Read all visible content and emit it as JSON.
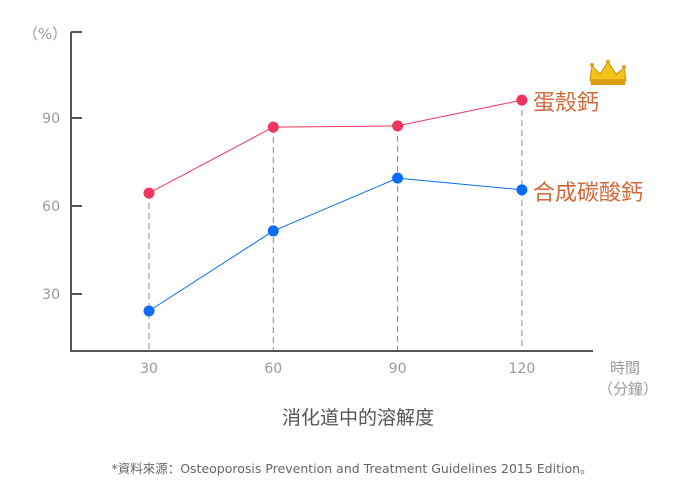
{
  "chart_data": {
    "type": "line",
    "title": "消化道中的溶解度",
    "xlabel": "時間",
    "xlabel_unit": "（分鐘）",
    "ylabel": "（%）",
    "x": [
      30,
      60,
      90,
      120
    ],
    "x_ticks": [
      "30",
      "60",
      "90",
      "120"
    ],
    "y_ticks": [
      "30",
      "60",
      "90"
    ],
    "ylim": [
      11,
      120
    ],
    "xlim": [
      3,
      146
    ],
    "grid": "vertical dashed drop lines at each x",
    "series": [
      {
        "name": "蛋殼鈣",
        "values": [
          64.4,
          86.9,
          87.3,
          96.1
        ],
        "color": "#f0355f",
        "annotation": "crown"
      },
      {
        "name": "合成碳酸鈣",
        "values": [
          24.2,
          51.5,
          69.5,
          65.5
        ],
        "color": "#0a6cf5"
      }
    ],
    "label_color": "#d2693a",
    "source": "*資料來源：Osteoporosis Prevention and Treatment Guidelines 2015 Edition。"
  }
}
